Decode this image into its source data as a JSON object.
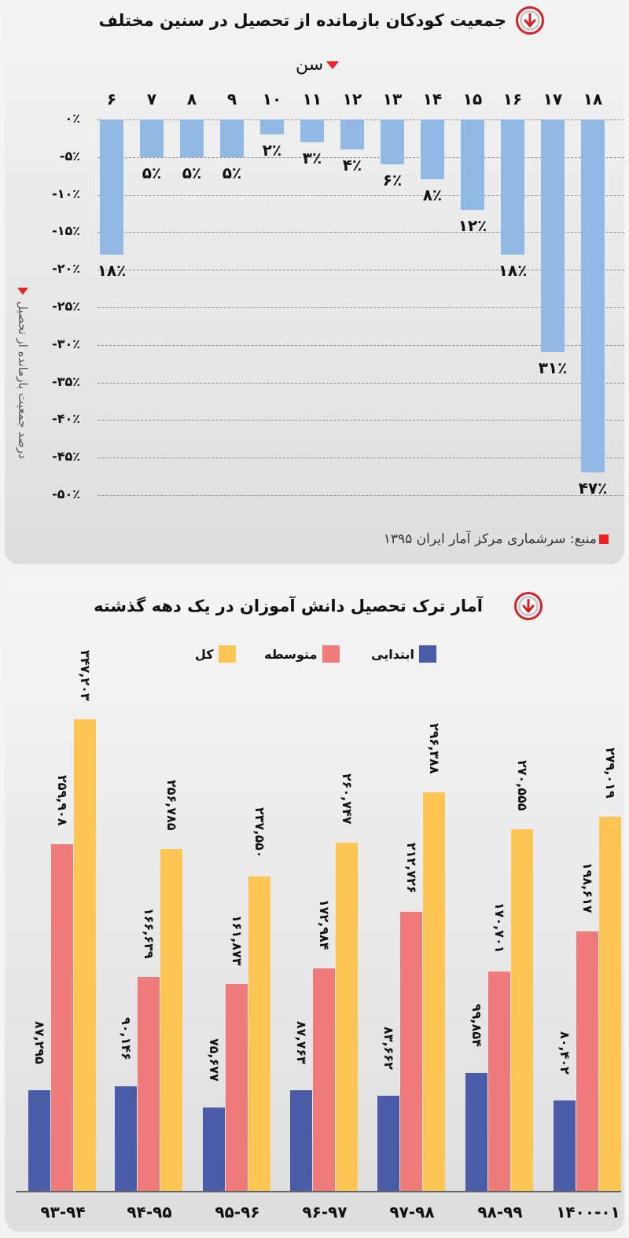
{
  "chart_data": [
    {
      "type": "bar",
      "title": "جمعیت کودکان بازمانده از تحصیل در سنین مختلف",
      "xlabel": "سن",
      "ylabel": "درصد جمعیت بازمانده از تحصیل",
      "categories": [
        "6",
        "7",
        "8",
        "9",
        "10",
        "11",
        "12",
        "13",
        "14",
        "15",
        "16",
        "17",
        "18"
      ],
      "categories_display": [
        "۶",
        "۷",
        "۸",
        "۹",
        "۱۰",
        "۱۱",
        "۱۲",
        "۱۳",
        "۱۴",
        "۱۵",
        "۱۶",
        "۱۷",
        "۱۸"
      ],
      "values": [
        -18,
        -5,
        -5,
        -5,
        -2,
        -3,
        -4,
        -6,
        -8,
        -12,
        -18,
        -31,
        -47
      ],
      "value_labels": [
        "۱۸٪",
        "۵٪",
        "۵٪",
        "۵٪",
        "۲٪",
        "۳٪",
        "۴٪",
        "۶٪",
        "۸٪",
        "۱۲٪",
        "۱۸٪",
        "۳۱٪",
        "۴۷٪"
      ],
      "ylim": [
        -50,
        0
      ],
      "yticks": [
        "۰٪",
        "-۵٪",
        "-۱۰٪",
        "-۱۵٪",
        "-۲۰٪",
        "-۲۵٪",
        "-۳۰٪",
        "-۳۵٪",
        "-۴۰٪",
        "-۴۵٪",
        "-۵۰٪"
      ],
      "grid": true,
      "bar_color": "#92b9e3",
      "source": "منبع: سرشماری مرکز آمار ایران ۱۳۹۵"
    },
    {
      "type": "bar",
      "title": "آمار ترک تحصیل دانش آموزان در یک دهه گذشته",
      "categories": [
        "93-94",
        "94-95",
        "95-96",
        "96-97",
        "97-98",
        "98-99",
        "1400-01"
      ],
      "categories_display": [
        "۹۳-۹۴",
        "۹۴-۹۵",
        "۹۵-۹۶",
        "۹۶-۹۷",
        "۹۷-۹۸",
        "۹۸-۹۹",
        "۱۴۰۰-۰۱"
      ],
      "legend_position": "top",
      "series": [
        {
          "name": "ابتدایی",
          "color": "#4a5ba8",
          "values": [
            87295,
            90146,
            75677,
            87763,
            83662,
            99854,
            80402
          ],
          "labels": [
            "۸۷,۲۹۵",
            "۹۰,۱۴۶",
            "۷۵,۶۷۷",
            "۸۷,۷۶۳",
            "۸۳,۶۶۲",
            "۹۹,۸۵۴",
            "۸۰,۴۰۲"
          ]
        },
        {
          "name": "متوسطه",
          "color": "#f07b7b",
          "values": [
            259908,
            166639,
            161873,
            172984,
            212726,
            170701,
            198617
          ],
          "labels": [
            "۲۵۹,۹۰۸",
            "۱۶۶,۶۳۹",
            "۱۶۱,۸۷۳",
            "۱۷۲,۹۸۴",
            "۲۱۲,۷۲۶",
            "۱۷۰,۷۰۱",
            "۱۹۸,۶۱۷"
          ]
        },
        {
          "name": "کل",
          "color": "#fdc654",
          "values": [
            347203,
            256785,
            237550,
            260747,
            296388,
            270555,
            279019
          ],
          "labels": [
            "۳۴۷,۲۰۳",
            "۲۵۶,۷۸۵",
            "۲۳۷,۵۵۰",
            "۲۶۰,۷۴۷",
            "۲۹۶,۳۸۸",
            "۲۷۰,۵۵۵",
            "۲۷۹,۰۱۹"
          ]
        }
      ]
    }
  ],
  "ui": {
    "accent_color": "#d71f26",
    "chart1": {
      "title": "جمعیت کودکان بازمانده از تحصیل در سنین مختلف",
      "xlabel": "سن",
      "ylabel": "درصد جمعیت بازمانده از تحصیل",
      "source": "منبع: سرشماری مرکز آمار ایران ۱۳۹۵"
    },
    "chart2": {
      "title": "آمار ترک تحصیل دانش آموزان در یک دهه گذشته",
      "legend": [
        "ابتدایی",
        "متوسطه",
        "کل"
      ]
    }
  }
}
